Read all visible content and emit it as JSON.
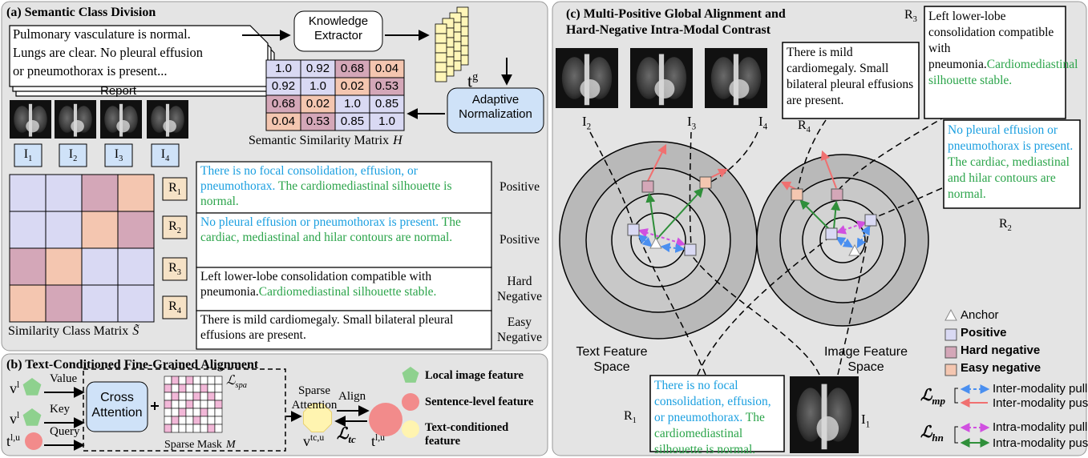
{
  "panel_a": {
    "title": "(a) Semantic Class Division",
    "report_lines": [
      "Pulmonary vasculature is normal.",
      "Lungs are clear. No pleural effusion",
      "or pneumothorax is present..."
    ],
    "report_label": "Report",
    "knowledge_extractor": "Knowledge Extractor",
    "tg": {
      "base": "t",
      "sup": "g"
    },
    "adaptive_normalization": "Adaptive Normalization",
    "similarity_matrix": [
      [
        "1.0",
        "0.92",
        "0.68",
        "0.04"
      ],
      [
        "0.92",
        "1.0",
        "0.02",
        "0.53"
      ],
      [
        "0.68",
        "0.02",
        "1.0",
        "0.85"
      ],
      [
        "0.04",
        "0.53",
        "0.85",
        "1.0"
      ]
    ],
    "similarity_caption": {
      "text": "Semantic Similarity Matrix",
      "symbol": "H"
    },
    "images": [
      {
        "base": "I",
        "sub": "1"
      },
      {
        "base": "I",
        "sub": "2"
      },
      {
        "base": "I",
        "sub": "3"
      },
      {
        "base": "I",
        "sub": "4"
      }
    ],
    "reports": [
      {
        "base": "R",
        "sub": "1"
      },
      {
        "base": "R",
        "sub": "2"
      },
      {
        "base": "R",
        "sub": "3"
      },
      {
        "base": "R",
        "sub": "4"
      }
    ],
    "class_caption": {
      "text": "Similarity Class Matrix",
      "symbol": "S̃"
    },
    "examples": [
      {
        "parts": [
          {
            "text": "There is no focal consolidation, effusion, or pneumothorax. ",
            "color": "#1a9fe0"
          },
          {
            "text": "The cardiomediastinal silhouette is normal.",
            "color": "#2ba44a"
          }
        ],
        "label": "Positive"
      },
      {
        "parts": [
          {
            "text": "No pleural effusion or pneumothorax is present. ",
            "color": "#1a9fe0"
          },
          {
            "text": "The cardiac, mediastinal and hilar contours are normal.",
            "color": "#2ba44a"
          }
        ],
        "label": "Positive"
      },
      {
        "parts": [
          {
            "text": "Left lower-lobe consolidation compatible with pneumonia.",
            "color": "#000000"
          },
          {
            "text": "Cardiomediastinal silhouette stable.",
            "color": "#2ba44a"
          }
        ],
        "label": "Hard Negative"
      },
      {
        "parts": [
          {
            "text": "There is mild cardiomegaly.  Small bilateral pleural effusions are present.",
            "color": "#000000"
          }
        ],
        "label": "Easy Negative"
      }
    ]
  },
  "panel_b": {
    "title": "(b) Text-Conditioned Fine-Grained Alignment",
    "inputs": [
      {
        "symbol": {
          "base": "v",
          "sup": "l"
        },
        "role": "Value"
      },
      {
        "symbol": {
          "base": "v",
          "sup": "l"
        },
        "role": "Key"
      },
      {
        "symbol": {
          "base": "t",
          "sup": "l,u"
        },
        "role": "Query"
      }
    ],
    "cross_attention": "Cross Attention",
    "l_spa": {
      "base": "ℒ",
      "sub": "spa"
    },
    "sparse_mask": {
      "text": "Sparse Mask",
      "symbol": "M"
    },
    "sparse_attention": "Sparse Attention",
    "align": "Align",
    "l_tc": {
      "base": "ℒ",
      "sub": "tc"
    },
    "v_tc": {
      "base": "v",
      "sup": "tc,u"
    },
    "t_lu": {
      "base": "t",
      "sup": "l,u"
    },
    "legend": [
      "Local image feature",
      "Sentence-level feature",
      "Text-conditioned feature"
    ]
  },
  "panel_c": {
    "title": [
      "(c) Multi-Positive Global Alignment and",
      "Hard-Negative Intra-Modal Contrast"
    ],
    "image_labels": [
      {
        "base": "I",
        "sub": "2"
      },
      {
        "base": "I",
        "sub": "3"
      },
      {
        "base": "I",
        "sub": "4"
      },
      {
        "base": "I",
        "sub": "1"
      }
    ],
    "r4": {
      "label": {
        "base": "R",
        "sub": "4"
      },
      "parts": [
        {
          "text": "There is mild cardiomegaly. Small bilateral pleural effusions are present.",
          "color": "#000000"
        }
      ]
    },
    "r3": {
      "label": {
        "base": "R",
        "sub": "3"
      },
      "parts": [
        {
          "text": "Left lower-lobe consolidation compatible with pneumonia.",
          "color": "#000000"
        },
        {
          "text": "Cardiomediastinal silhouette stable.",
          "color": "#2ba44a"
        }
      ]
    },
    "r2": {
      "label": {
        "base": "R",
        "sub": "2"
      },
      "parts": [
        {
          "text": "No pleural effusion or pneumothorax is present. ",
          "color": "#1a9fe0"
        },
        {
          "text": "The cardiac, mediastinal and hilar contours are normal.",
          "color": "#2ba44a"
        }
      ]
    },
    "r1": {
      "label": {
        "base": "R",
        "sub": "1"
      },
      "parts": [
        {
          "text": "There is no focal consolidation, effusion, or pneumothorax. ",
          "color": "#1a9fe0"
        },
        {
          "text": "The cardiomediastinal silhouette is normal.",
          "color": "#2ba44a"
        }
      ]
    },
    "text_space": "Text Feature Space",
    "image_space": "Image Feature Space",
    "legend": [
      "Anchor",
      "Positive",
      "Hard negative",
      "Easy negative"
    ],
    "l_mp": {
      "base": "ℒ",
      "sub": "mp"
    },
    "l_hn": {
      "base": "ℒ",
      "sub": "hn"
    },
    "arrows": [
      "Inter-modality pull",
      "Inter-modality push",
      "Intra-modality pull",
      "Intra-modality push"
    ]
  }
}
